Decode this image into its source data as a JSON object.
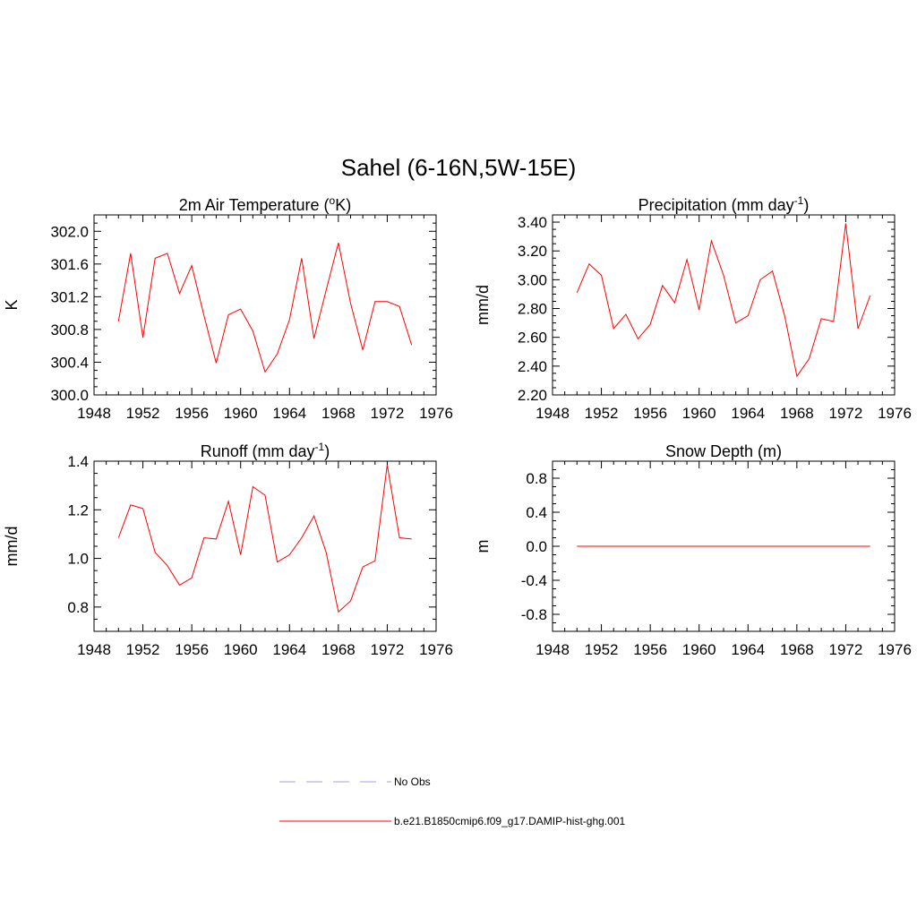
{
  "title": "Sahel (6-16N,5W-15E)",
  "legend": [
    {
      "label": "No Obs",
      "color": "#a0a0ff",
      "dash": true
    },
    {
      "label": "b.e21.B1850cmip6.f09_g17.DAMIP-hist-ghg.001",
      "color": "#ff0000",
      "dash": false
    }
  ],
  "chart_data": [
    {
      "type": "line",
      "title": "2m Air Temperature (°K)",
      "title_main": "2m Air Temperature (",
      "title_sup": "o",
      "title_after": "K)",
      "ylabel": "K",
      "xlim": [
        1948,
        1976
      ],
      "xticks": [
        1948,
        1952,
        1956,
        1960,
        1964,
        1968,
        1972,
        1976
      ],
      "ylim": [
        300.0,
        302.2
      ],
      "yticks": [
        300.0,
        300.4,
        300.8,
        301.2,
        301.6,
        302.0
      ],
      "ytick_labels": [
        "300.0",
        "300.4",
        "300.8",
        "301.2",
        "301.6",
        "302.0"
      ],
      "series": [
        {
          "color": "#ff0000",
          "x": [
            1950,
            1951,
            1952,
            1953,
            1954,
            1955,
            1956,
            1957,
            1958,
            1959,
            1960,
            1961,
            1962,
            1963,
            1964,
            1965,
            1966,
            1967,
            1968,
            1969,
            1970,
            1971,
            1972,
            1973,
            1974
          ],
          "values": [
            300.9,
            301.73,
            300.7,
            301.67,
            301.73,
            301.24,
            301.58,
            300.97,
            300.39,
            300.98,
            301.05,
            300.78,
            300.28,
            300.5,
            300.92,
            301.67,
            300.69,
            301.28,
            301.86,
            301.12,
            300.55,
            301.14,
            301.14,
            301.08,
            300.61
          ]
        }
      ]
    },
    {
      "type": "line",
      "title": "Precipitation (mm day-1)",
      "title_main": "Precipitation (mm day",
      "title_sup": "-1",
      "title_after": ")",
      "ylabel": "mm/d",
      "xlim": [
        1948,
        1976
      ],
      "xticks": [
        1948,
        1952,
        1956,
        1960,
        1964,
        1968,
        1972,
        1976
      ],
      "ylim": [
        2.2,
        3.45
      ],
      "yticks": [
        2.2,
        2.4,
        2.6,
        2.8,
        3.0,
        3.2,
        3.4
      ],
      "ytick_labels": [
        "2.20",
        "2.40",
        "2.60",
        "2.80",
        "3.00",
        "3.20",
        "3.40"
      ],
      "series": [
        {
          "color": "#ff0000",
          "x": [
            1950,
            1951,
            1952,
            1953,
            1954,
            1955,
            1956,
            1957,
            1958,
            1959,
            1960,
            1961,
            1962,
            1963,
            1964,
            1965,
            1966,
            1967,
            1968,
            1969,
            1970,
            1971,
            1972,
            1973,
            1974
          ],
          "values": [
            2.91,
            3.11,
            3.03,
            2.66,
            2.76,
            2.59,
            2.69,
            2.96,
            2.84,
            3.14,
            2.79,
            3.27,
            3.03,
            2.7,
            2.75,
            3.0,
            3.06,
            2.75,
            2.33,
            2.45,
            2.73,
            2.71,
            3.39,
            2.66,
            2.89
          ]
        }
      ]
    },
    {
      "type": "line",
      "title": "Runoff (mm day-1)",
      "title_main": "Runoff (mm day",
      "title_sup": "-1",
      "title_after": ")",
      "ylabel": "mm/d",
      "xlim": [
        1948,
        1976
      ],
      "xticks": [
        1948,
        1952,
        1956,
        1960,
        1964,
        1968,
        1972,
        1976
      ],
      "ylim": [
        0.7,
        1.4
      ],
      "yticks": [
        0.8,
        1.0,
        1.2,
        1.4
      ],
      "ytick_labels": [
        "0.8",
        "1.0",
        "1.2",
        "1.4"
      ],
      "series": [
        {
          "color": "#ff0000",
          "x": [
            1950,
            1951,
            1952,
            1953,
            1954,
            1955,
            1956,
            1957,
            1958,
            1959,
            1960,
            1961,
            1962,
            1963,
            1964,
            1965,
            1966,
            1967,
            1968,
            1969,
            1970,
            1971,
            1972,
            1973,
            1974
          ],
          "values": [
            1.085,
            1.22,
            1.205,
            1.025,
            0.97,
            0.89,
            0.92,
            1.085,
            1.08,
            1.235,
            1.015,
            1.295,
            1.26,
            0.985,
            1.015,
            1.085,
            1.175,
            1.025,
            0.78,
            0.825,
            0.965,
            0.99,
            1.385,
            1.085,
            1.08
          ]
        }
      ]
    },
    {
      "type": "line",
      "title": "Snow Depth (m)",
      "title_main": "Snow Depth (m)",
      "title_sup": "",
      "title_after": "",
      "ylabel": "m",
      "xlim": [
        1948,
        1976
      ],
      "xticks": [
        1948,
        1952,
        1956,
        1960,
        1964,
        1968,
        1972,
        1976
      ],
      "ylim": [
        -1.0,
        1.0
      ],
      "yticks": [
        -0.8,
        -0.4,
        0.0,
        0.4,
        0.8
      ],
      "ytick_labels": [
        "-0.8",
        "-0.4",
        "0.0",
        "0.4",
        "0.8"
      ],
      "series": [
        {
          "color": "#ff0000",
          "x": [
            1950,
            1974
          ],
          "values": [
            0.0,
            0.0
          ]
        }
      ]
    }
  ]
}
